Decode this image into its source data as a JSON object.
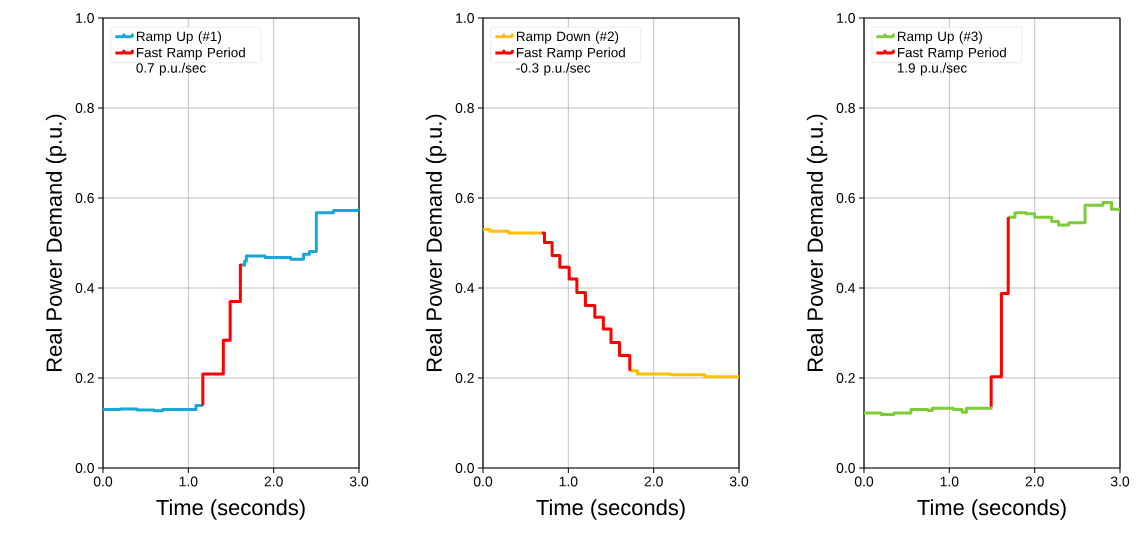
{
  "chart_data": [
    {
      "type": "step",
      "xlabel": "Time (seconds)",
      "ylabel": "Real Power Demand (p.u.)",
      "xlim": [
        0,
        3
      ],
      "ylim": [
        0,
        1
      ],
      "xticks": [
        {
          "value": 0,
          "label": "0.0"
        },
        {
          "value": 1,
          "label": "1.0"
        },
        {
          "value": 2,
          "label": "2.0"
        },
        {
          "value": 3,
          "label": "3.0"
        }
      ],
      "yticks": [
        {
          "value": 0,
          "label": "0.0"
        },
        {
          "value": 0.2,
          "label": "0.2"
        },
        {
          "value": 0.4,
          "label": "0.4"
        },
        {
          "value": 0.6,
          "label": "0.6"
        },
        {
          "value": 0.8,
          "label": "0.8"
        },
        {
          "value": 1,
          "label": "1.0"
        }
      ],
      "grid": true,
      "legend": "top left",
      "series": [
        {
          "name": "Ramp Up (#1)",
          "color": "#1aa7d6",
          "x": [
            0,
            0.2,
            0.4,
            0.6,
            0.7,
            0.9,
            1.09,
            1.17
          ],
          "values": [
            0.13,
            0.131,
            0.129,
            0.127,
            0.13,
            0.13,
            0.139,
            0.139
          ]
        },
        {
          "color": "#1aa7d6",
          "x": [
            1.63,
            1.66,
            1.68,
            1.9,
            2.2,
            2.35,
            2.42,
            2.5,
            2.7,
            3.0
          ],
          "values": [
            0.451,
            0.46,
            0.471,
            0.468,
            0.464,
            0.475,
            0.481,
            0.567,
            0.572,
            0.577
          ]
        },
        {
          "name": "Fast Ramp Period 0.7 p.u./sec",
          "color": "#ff0000",
          "x": [
            1.17,
            1.17,
            1.41,
            1.49,
            1.61,
            1.63
          ],
          "values": [
            0.139,
            0.209,
            0.284,
            0.37,
            0.451,
            0.451
          ]
        }
      ]
    },
    {
      "type": "step",
      "xlabel": "Time (seconds)",
      "ylabel": "Real Power Demand (p.u.)",
      "xlim": [
        0,
        3
      ],
      "ylim": [
        0,
        1
      ],
      "xticks": [
        {
          "value": 0,
          "label": "0.0"
        },
        {
          "value": 1,
          "label": "1.0"
        },
        {
          "value": 2,
          "label": "2.0"
        },
        {
          "value": 3,
          "label": "3.0"
        }
      ],
      "yticks": [
        {
          "value": 0,
          "label": "0.0"
        },
        {
          "value": 0.2,
          "label": "0.2"
        },
        {
          "value": 0.4,
          "label": "0.4"
        },
        {
          "value": 0.6,
          "label": "0.6"
        },
        {
          "value": 0.8,
          "label": "0.8"
        },
        {
          "value": 1,
          "label": "1.0"
        }
      ],
      "grid": true,
      "legend": "top left",
      "series": [
        {
          "name": "Ramp Down (#2)",
          "color": "#ffc000",
          "x": [
            0,
            0.08,
            0.3,
            0.69
          ],
          "values": [
            0.53,
            0.526,
            0.522,
            0.522
          ]
        },
        {
          "color": "#ffc000",
          "x": [
            1.72,
            1.81,
            2.2,
            2.6,
            3.0
          ],
          "values": [
            0.216,
            0.209,
            0.207,
            0.203,
            0.2
          ]
        },
        {
          "name": "Fast Ramp Period -0.3 p.u./sec",
          "color": "#ff0000",
          "x": [
            0.69,
            0.72,
            0.81,
            0.9,
            1.01,
            1.1,
            1.2,
            1.31,
            1.41,
            1.5,
            1.6,
            1.72
          ],
          "values": [
            0.522,
            0.501,
            0.472,
            0.446,
            0.42,
            0.39,
            0.361,
            0.335,
            0.309,
            0.279,
            0.25,
            0.216
          ]
        }
      ]
    },
    {
      "type": "step",
      "xlabel": "Time (seconds)",
      "ylabel": "Real Power Demand (p.u.)",
      "xlim": [
        0,
        3
      ],
      "ylim": [
        0,
        1
      ],
      "xticks": [
        {
          "value": 0,
          "label": "0.0"
        },
        {
          "value": 1,
          "label": "1.0"
        },
        {
          "value": 2,
          "label": "2.0"
        },
        {
          "value": 3,
          "label": "3.0"
        }
      ],
      "yticks": [
        {
          "value": 0,
          "label": "0.0"
        },
        {
          "value": 0.2,
          "label": "0.2"
        },
        {
          "value": 0.4,
          "label": "0.4"
        },
        {
          "value": 0.6,
          "label": "0.6"
        },
        {
          "value": 0.8,
          "label": "0.8"
        },
        {
          "value": 1,
          "label": "1.0"
        }
      ],
      "grid": true,
      "legend": "top left",
      "series": [
        {
          "name": "Ramp Up (#3)",
          "color": "#7dcc3a",
          "x": [
            0,
            0.2,
            0.35,
            0.55,
            0.75,
            0.8,
            1.05,
            1.15,
            1.2,
            1.49
          ],
          "values": [
            0.122,
            0.119,
            0.122,
            0.13,
            0.128,
            0.133,
            0.13,
            0.124,
            0.133,
            0.136
          ]
        },
        {
          "color": "#7dcc3a",
          "x": [
            1.69,
            1.77,
            1.9,
            2.0,
            2.2,
            2.28,
            2.4,
            2.59,
            2.8,
            2.9,
            3.0
          ],
          "values": [
            0.557,
            0.567,
            0.565,
            0.557,
            0.548,
            0.54,
            0.545,
            0.584,
            0.59,
            0.575,
            0.567
          ]
        },
        {
          "name": "Fast Ramp Period 1.9 p.u./sec",
          "color": "#ff0000",
          "x": [
            1.49,
            1.49,
            1.61,
            1.69
          ],
          "values": [
            0.136,
            0.203,
            0.388,
            0.557
          ]
        }
      ]
    }
  ]
}
